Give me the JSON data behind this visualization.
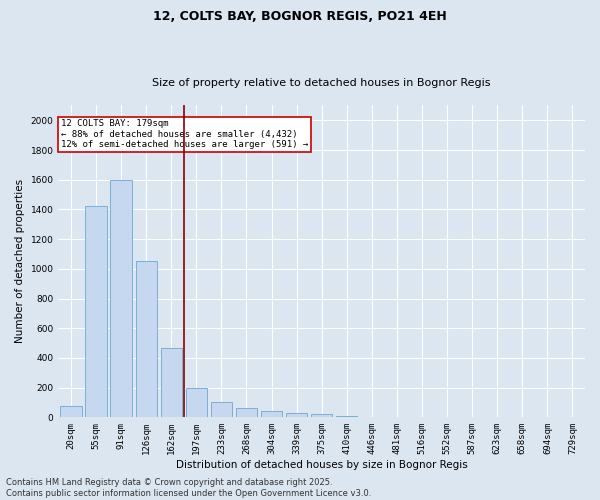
{
  "title": "12, COLTS BAY, BOGNOR REGIS, PO21 4EH",
  "subtitle": "Size of property relative to detached houses in Bognor Regis",
  "xlabel": "Distribution of detached houses by size in Bognor Regis",
  "ylabel": "Number of detached properties",
  "categories": [
    "20sqm",
    "55sqm",
    "91sqm",
    "126sqm",
    "162sqm",
    "197sqm",
    "233sqm",
    "268sqm",
    "304sqm",
    "339sqm",
    "375sqm",
    "410sqm",
    "446sqm",
    "481sqm",
    "516sqm",
    "552sqm",
    "587sqm",
    "623sqm",
    "658sqm",
    "694sqm",
    "729sqm"
  ],
  "values": [
    75,
    1420,
    1600,
    1050,
    470,
    200,
    100,
    60,
    45,
    30,
    20,
    10,
    0,
    0,
    0,
    0,
    0,
    0,
    0,
    0,
    0
  ],
  "bar_color": "#c5d8ef",
  "bar_edge_color": "#7aafd4",
  "bg_color": "#dce6f1",
  "grid_color": "#ffffff",
  "vline_x": 4.5,
  "vline_color": "#8B0000",
  "annotation_text": "12 COLTS BAY: 179sqm\n← 88% of detached houses are smaller (4,432)\n12% of semi-detached houses are larger (591) →",
  "annotation_box_color": "#ffffff",
  "annotation_box_edge": "#cc0000",
  "ylim": [
    0,
    2100
  ],
  "yticks": [
    0,
    200,
    400,
    600,
    800,
    1000,
    1200,
    1400,
    1600,
    1800,
    2000
  ],
  "footer": "Contains HM Land Registry data © Crown copyright and database right 2025.\nContains public sector information licensed under the Open Government Licence v3.0.",
  "title_fontsize": 9,
  "subtitle_fontsize": 8,
  "axis_label_fontsize": 7.5,
  "tick_fontsize": 6.5,
  "annotation_fontsize": 6.5,
  "footer_fontsize": 6
}
